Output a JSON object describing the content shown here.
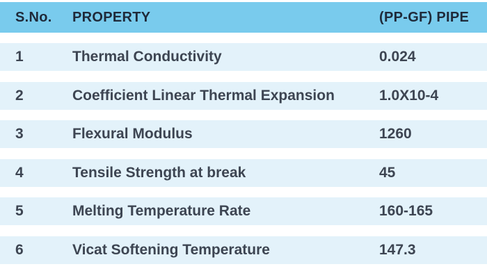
{
  "table": {
    "headers": {
      "sno": "S.No.",
      "property": "PROPERTY",
      "value": "(PP-GF) PIPE"
    },
    "rows": [
      {
        "sno": "1",
        "property": "Thermal Conductivity",
        "value": "0.024"
      },
      {
        "sno": "2",
        "property": "Coefficient Linear Thermal Expansion",
        "value": "1.0X10-4"
      },
      {
        "sno": "3",
        "property": "Flexural Modulus",
        "value": "1260"
      },
      {
        "sno": "4",
        "property": "Tensile Strength at break",
        "value": "45"
      },
      {
        "sno": "5",
        "property": "Melting Temperature Rate",
        "value": "160-165"
      },
      {
        "sno": "6",
        "property": "Vicat Softening Temperature",
        "value": "147.3"
      }
    ]
  },
  "colors": {
    "header_bg": "#79cbed",
    "row_bg": "#e3f2fa",
    "text": "#3d4552"
  }
}
